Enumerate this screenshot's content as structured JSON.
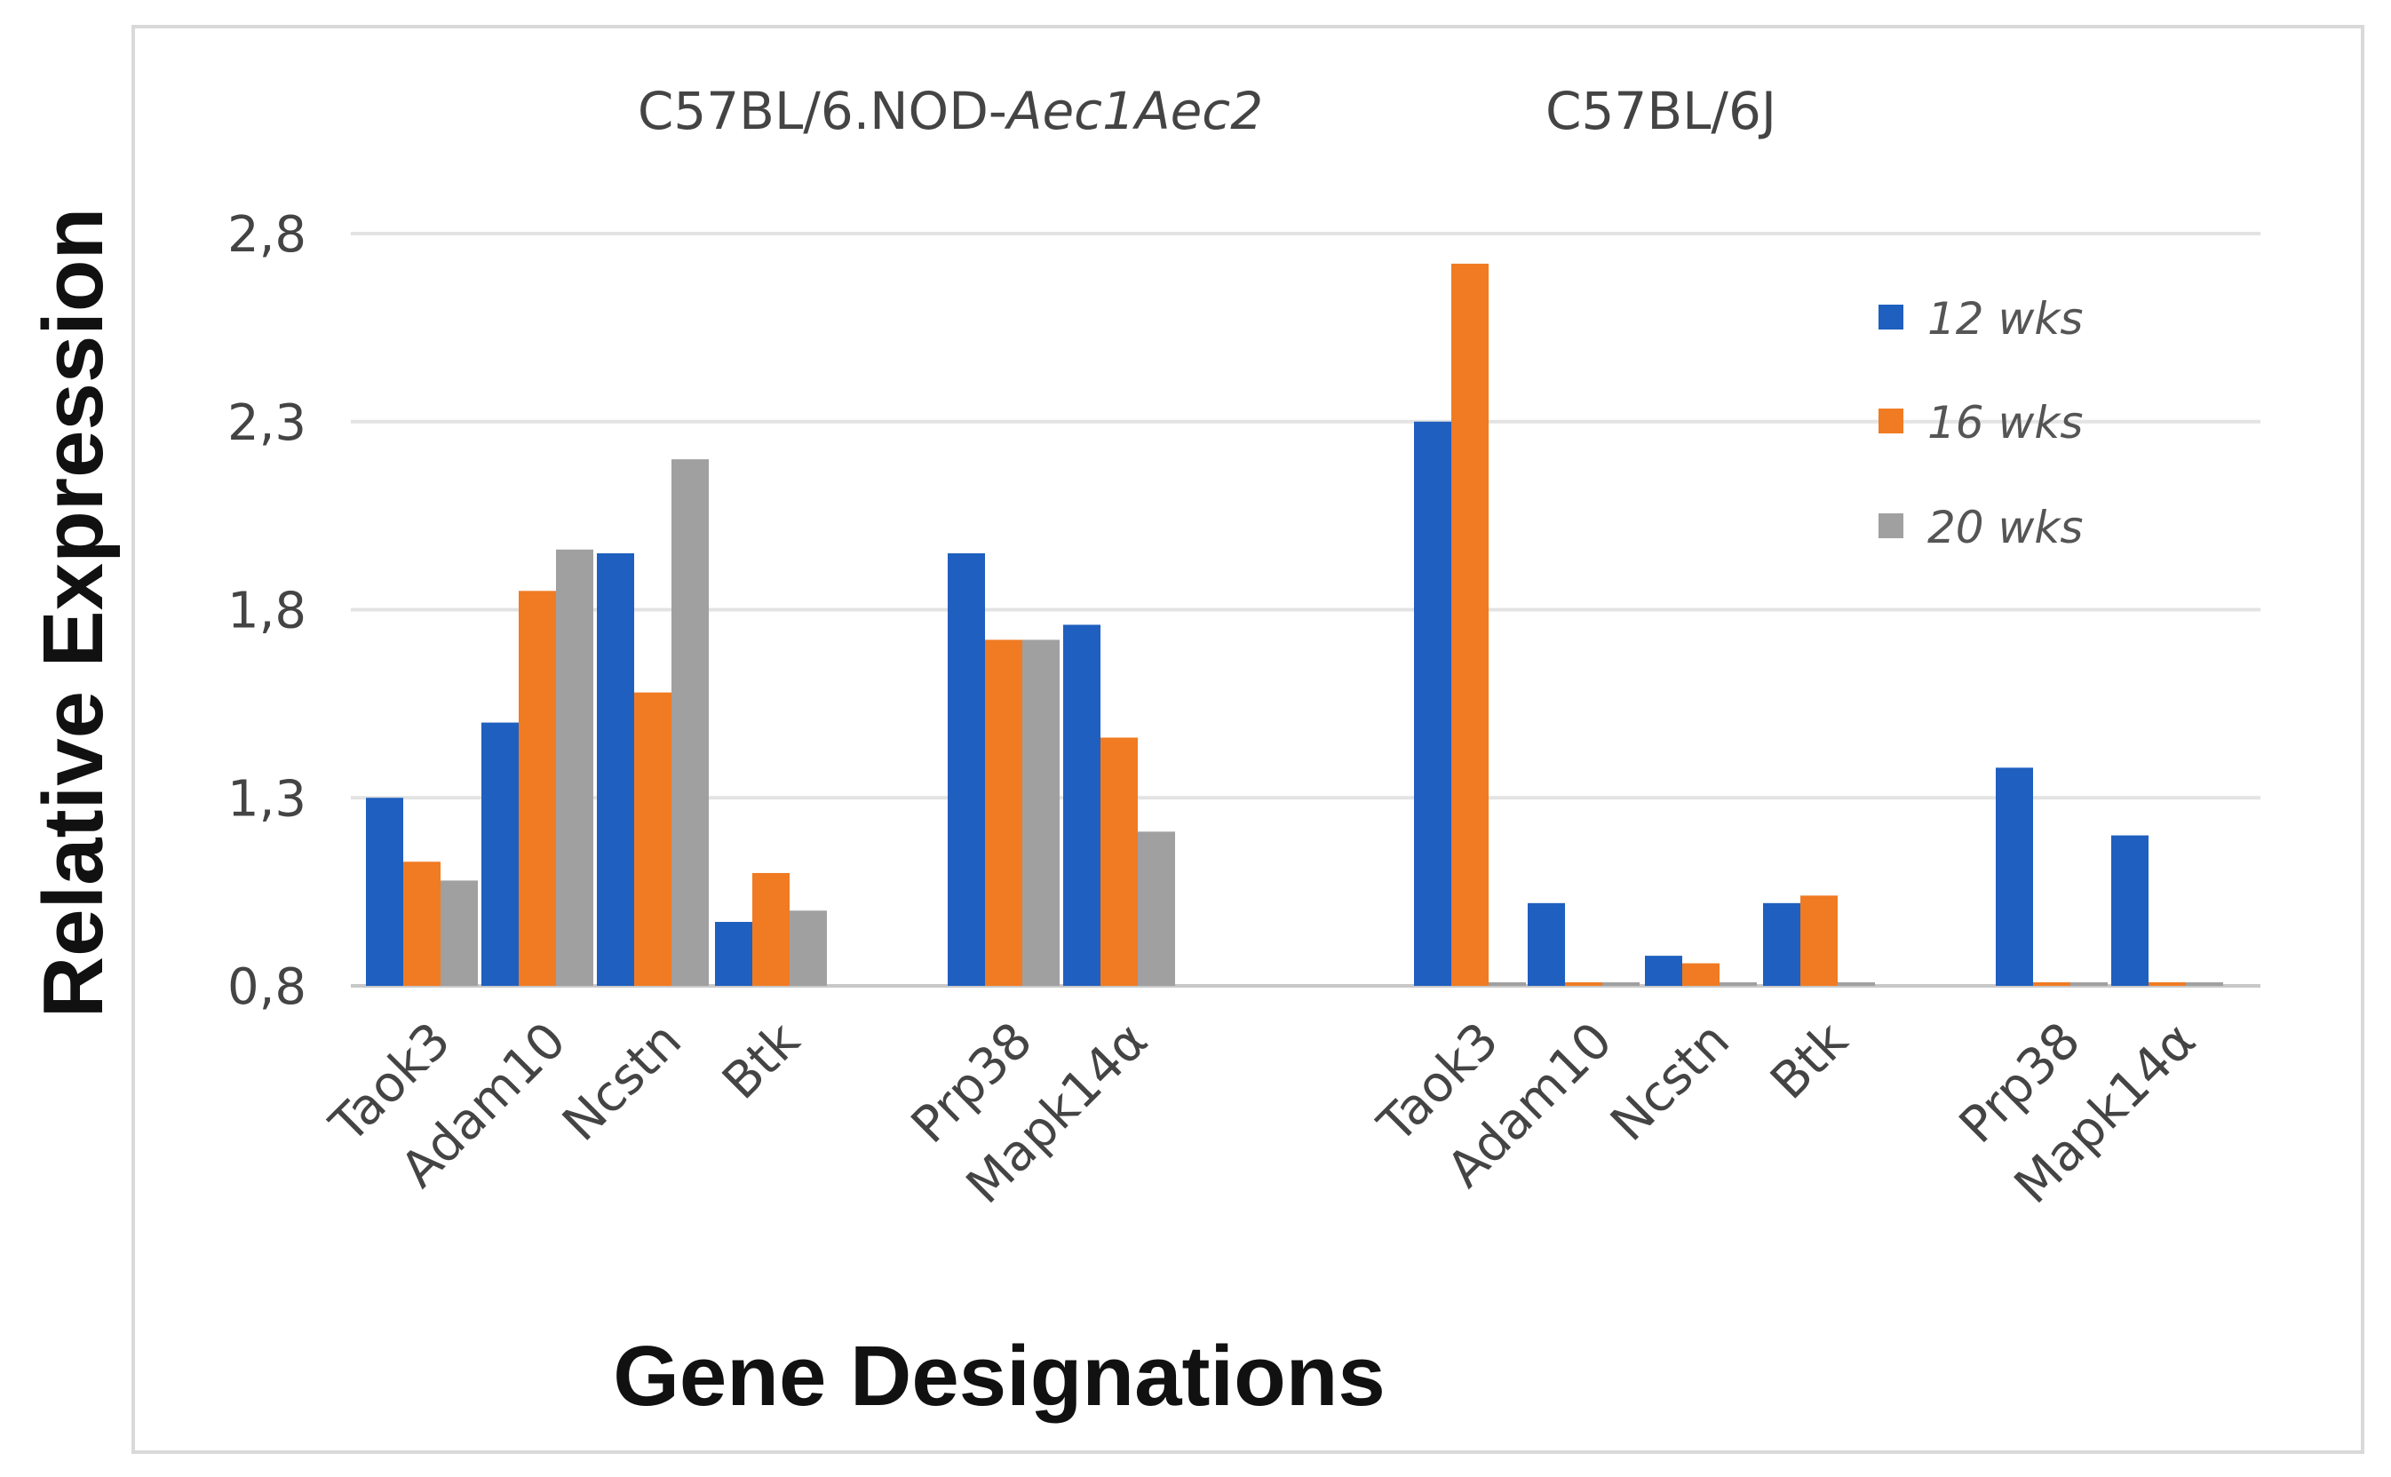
{
  "chart_data": {
    "type": "bar",
    "title": "",
    "xlabel": "Gene Designations",
    "ylabel": "Relative Expression",
    "ylim": [
      0.8,
      2.8
    ],
    "yticks": [
      "0,8",
      "1,3",
      "1,8",
      "2,3",
      "2,8"
    ],
    "ytick_values": [
      0.8,
      1.3,
      1.8,
      2.3,
      2.8
    ],
    "grid": true,
    "legend_position": "top-right",
    "groups": [
      {
        "title_plain": "C57BL/6.NOD-",
        "title_italic": "Aec1Aec2",
        "categories": [
          "Taok3",
          "Adam10",
          "Ncstn",
          "Btk",
          "Prp38",
          "Mapk14α"
        ]
      },
      {
        "title_plain": "C57BL/6J",
        "title_italic": "",
        "categories": [
          "Taok3",
          "Adam10",
          "Ncstn",
          "Btk",
          "Prp38",
          "Mapk14α"
        ]
      }
    ],
    "series": [
      {
        "name": "12 wks",
        "color": "#1f5fbf",
        "values": [
          [
            1.3,
            1.5,
            1.95,
            0.97,
            1.95,
            1.76
          ],
          [
            2.3,
            1.02,
            0.88,
            1.02,
            1.38,
            1.2
          ]
        ]
      },
      {
        "name": "16 wks",
        "color": "#f07b22",
        "values": [
          [
            1.13,
            1.85,
            1.58,
            1.1,
            1.72,
            1.46
          ],
          [
            2.72,
            0.8,
            0.86,
            1.04,
            0.8,
            0.8
          ]
        ]
      },
      {
        "name": "20 wks",
        "color": "#a0a0a0",
        "values": [
          [
            1.08,
            1.96,
            2.2,
            1.0,
            1.72,
            1.21
          ],
          [
            0.8,
            0.8,
            0.8,
            0.8,
            0.8,
            0.8
          ]
        ]
      }
    ]
  }
}
